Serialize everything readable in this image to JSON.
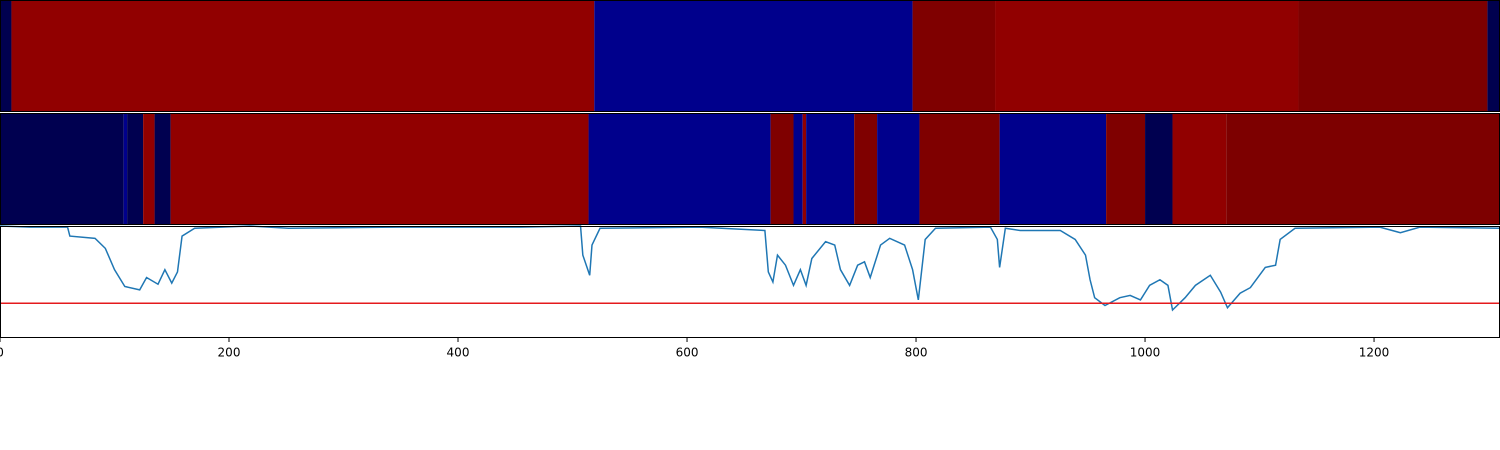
{
  "chart_data": [
    {
      "type": "segments",
      "xlim": [
        0,
        1310
      ],
      "segments": [
        {
          "start": 0,
          "end": 10,
          "color": "#00004f"
        },
        {
          "start": 10,
          "end": 519,
          "color": "#910000"
        },
        {
          "start": 519,
          "end": 797,
          "color": "#00008c"
        },
        {
          "start": 797,
          "end": 869,
          "color": "#7f0000"
        },
        {
          "start": 869,
          "end": 1134,
          "color": "#910000"
        },
        {
          "start": 1134,
          "end": 1299,
          "color": "#7d0000"
        },
        {
          "start": 1299,
          "end": 1310,
          "color": "#00004f"
        }
      ]
    },
    {
      "type": "segments",
      "xlim": [
        0,
        1310
      ],
      "segments": [
        {
          "start": 0,
          "end": 108,
          "color": "#000050"
        },
        {
          "start": 108,
          "end": 111,
          "color": "#00008c"
        },
        {
          "start": 111,
          "end": 125,
          "color": "#000050"
        },
        {
          "start": 125,
          "end": 135,
          "color": "#910000"
        },
        {
          "start": 135,
          "end": 149,
          "color": "#000050"
        },
        {
          "start": 149,
          "end": 514,
          "color": "#910000"
        },
        {
          "start": 514,
          "end": 673,
          "color": "#00008c"
        },
        {
          "start": 673,
          "end": 693,
          "color": "#7f0000"
        },
        {
          "start": 693,
          "end": 701,
          "color": "#00008c"
        },
        {
          "start": 701,
          "end": 704,
          "color": "#910000"
        },
        {
          "start": 704,
          "end": 746,
          "color": "#00008c"
        },
        {
          "start": 746,
          "end": 766,
          "color": "#7f0000"
        },
        {
          "start": 766,
          "end": 803,
          "color": "#00008c"
        },
        {
          "start": 803,
          "end": 873,
          "color": "#7f0000"
        },
        {
          "start": 873,
          "end": 966,
          "color": "#00008c"
        },
        {
          "start": 966,
          "end": 1000,
          "color": "#7f0000"
        },
        {
          "start": 1000,
          "end": 1024,
          "color": "#000050"
        },
        {
          "start": 1024,
          "end": 1071,
          "color": "#910000"
        },
        {
          "start": 1071,
          "end": 1310,
          "color": "#7d0000"
        }
      ]
    },
    {
      "type": "line",
      "xlim": [
        0,
        1310
      ],
      "ylim": [
        0,
        1
      ],
      "xticks": [
        0,
        200,
        400,
        600,
        800,
        1000,
        1200
      ],
      "color": "#1f77b4",
      "threshold": {
        "value": 0.31,
        "color": "#e41a1c"
      },
      "x": [
        0,
        26,
        59,
        61,
        83,
        92,
        100,
        109,
        122,
        128,
        138,
        144,
        150,
        155,
        159,
        170,
        218,
        252,
        349,
        454,
        507,
        509,
        515,
        517,
        524,
        611,
        668,
        671,
        675,
        679,
        686,
        693,
        699,
        704,
        709,
        721,
        729,
        734,
        742,
        749,
        755,
        760,
        769,
        777,
        790,
        797,
        802,
        808,
        817,
        865,
        871,
        873,
        878,
        891,
        926,
        939,
        948,
        952,
        956,
        965,
        978,
        987,
        996,
        1004,
        1013,
        1020,
        1024,
        1035,
        1044,
        1057,
        1066,
        1072,
        1083,
        1092,
        1105,
        1114,
        1118,
        1131,
        1205,
        1223,
        1240,
        1310
      ],
      "values": [
        1.0,
        0.99,
        0.99,
        0.91,
        0.89,
        0.8,
        0.61,
        0.46,
        0.43,
        0.54,
        0.48,
        0.61,
        0.49,
        0.59,
        0.91,
        0.98,
        1.0,
        0.98,
        0.99,
        0.99,
        1.0,
        0.74,
        0.56,
        0.83,
        0.98,
        0.99,
        0.96,
        0.59,
        0.5,
        0.74,
        0.65,
        0.47,
        0.61,
        0.47,
        0.71,
        0.86,
        0.83,
        0.61,
        0.47,
        0.65,
        0.68,
        0.54,
        0.83,
        0.89,
        0.83,
        0.61,
        0.34,
        0.88,
        0.98,
        0.99,
        0.88,
        0.63,
        0.98,
        0.96,
        0.96,
        0.88,
        0.74,
        0.52,
        0.36,
        0.29,
        0.36,
        0.38,
        0.34,
        0.47,
        0.52,
        0.47,
        0.25,
        0.36,
        0.47,
        0.56,
        0.41,
        0.27,
        0.4,
        0.45,
        0.63,
        0.65,
        0.88,
        0.98,
        0.99,
        0.94,
        0.99,
        0.98
      ]
    }
  ]
}
